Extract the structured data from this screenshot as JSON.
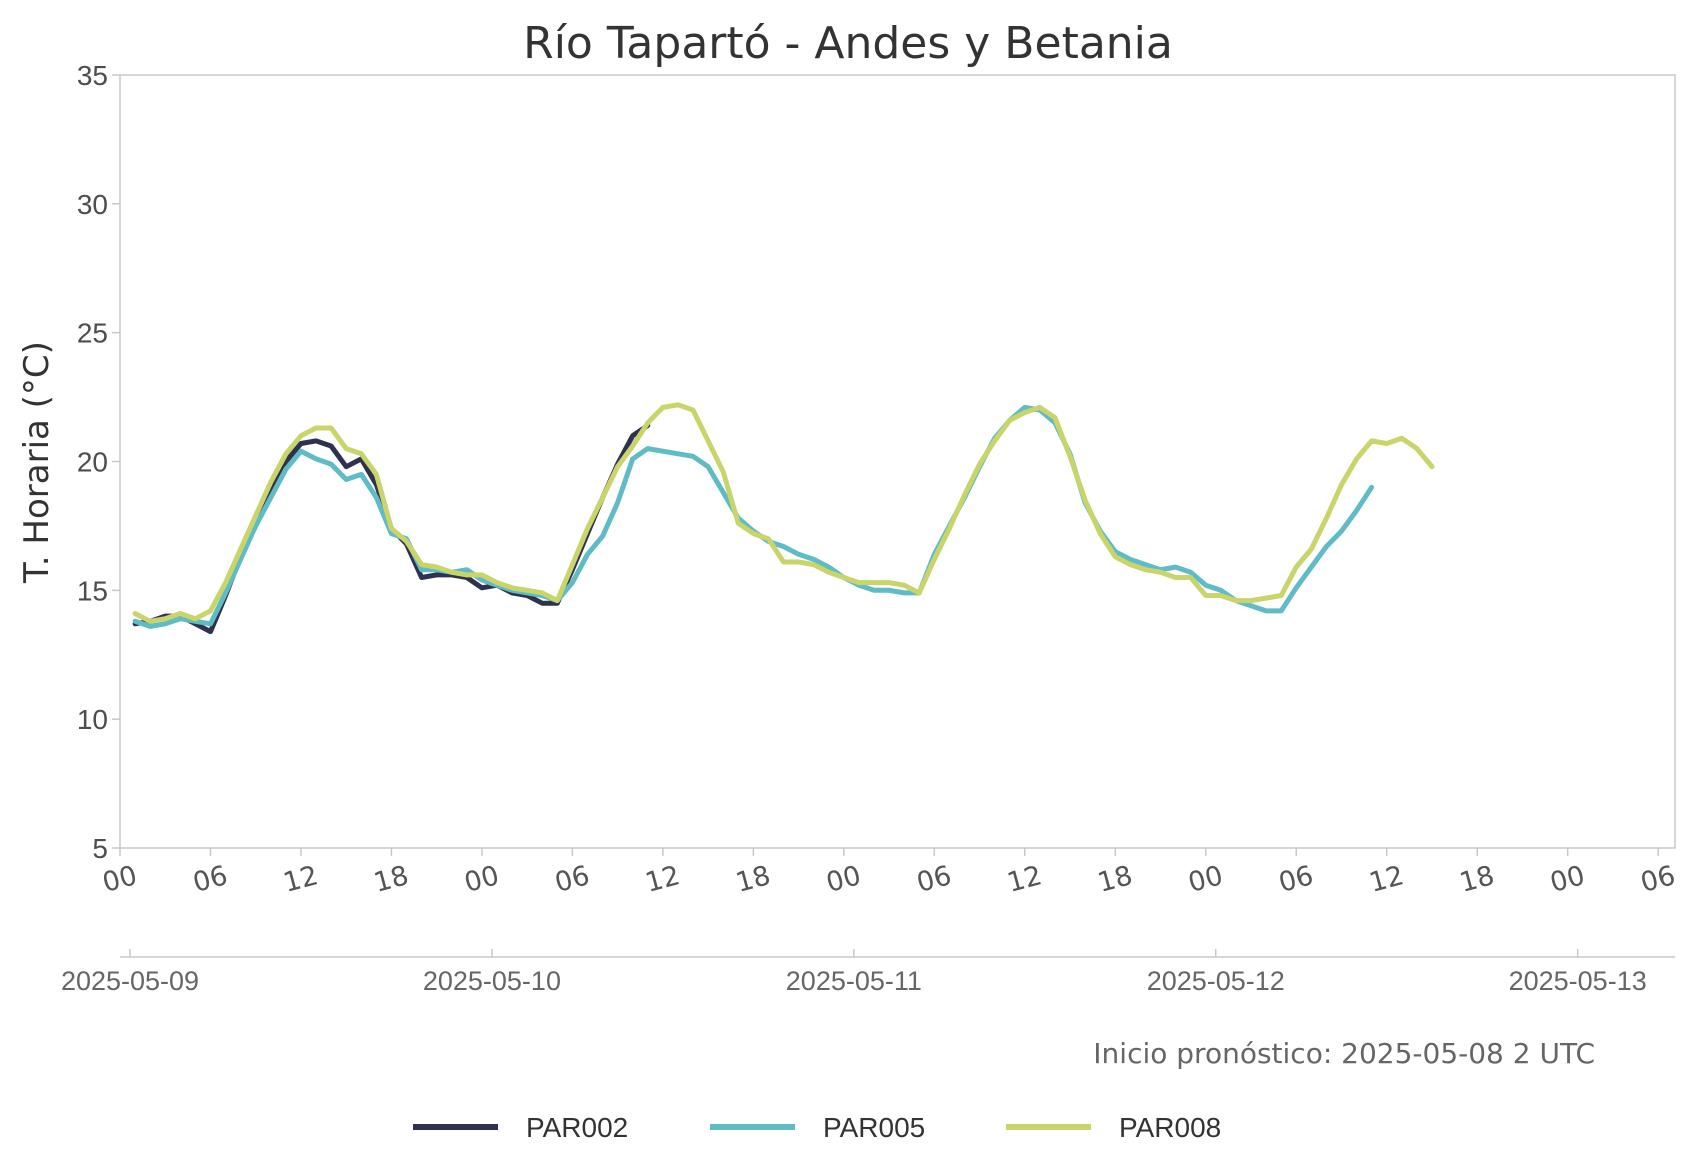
{
  "chart_data": {
    "type": "line",
    "title": "Río Tapartó - Andes y Betania",
    "ylabel": "T. Horaria (°C)",
    "xlabel": "",
    "ylim": [
      5,
      35
    ],
    "yticks": [
      5,
      10,
      15,
      20,
      25,
      30,
      35
    ],
    "xlim_hours": [
      0,
      102
    ],
    "hour_ticks": [
      "00",
      "06",
      "12",
      "18",
      "00",
      "06",
      "12",
      "18",
      "00",
      "06",
      "12",
      "18",
      "00",
      "06",
      "12",
      "18",
      "00",
      "06"
    ],
    "date_ticks": [
      "2025-05-09",
      "2025-05-10",
      "2025-05-11",
      "2025-05-12",
      "2025-05-13"
    ],
    "x_start": "2025-05-09 00:00",
    "grid": false,
    "legend_position": "bottom",
    "annotation": "Inicio pronóstico: 2025-05-08 2 UTC",
    "series": [
      {
        "name": "PAR002",
        "color": "#2e3250",
        "x": [
          1,
          2,
          3,
          4,
          5,
          6,
          7,
          8,
          9,
          10,
          11,
          12,
          13,
          14,
          15,
          16,
          17,
          18,
          19,
          20,
          21,
          22,
          23,
          24,
          25,
          26,
          27,
          28,
          29,
          30,
          31,
          32,
          33,
          34,
          35
        ],
        "values": [
          13.7,
          13.8,
          14.0,
          14.0,
          13.7,
          13.4,
          14.8,
          16.3,
          17.6,
          18.9,
          20.0,
          20.7,
          20.8,
          20.6,
          19.8,
          20.1,
          19.1,
          17.4,
          16.8,
          15.5,
          15.6,
          15.6,
          15.5,
          15.1,
          15.2,
          14.9,
          14.8,
          14.5,
          14.5,
          15.8,
          17.2,
          18.6,
          19.9,
          21.0,
          21.4
        ]
      },
      {
        "name": "PAR005",
        "color": "#5fbcc6",
        "x": [
          1,
          2,
          3,
          4,
          5,
          6,
          7,
          8,
          9,
          10,
          11,
          12,
          13,
          14,
          15,
          16,
          17,
          18,
          19,
          20,
          21,
          22,
          23,
          24,
          25,
          26,
          27,
          28,
          29,
          30,
          31,
          32,
          33,
          34,
          35,
          36,
          37,
          38,
          39,
          40,
          41,
          42,
          43,
          44,
          45,
          46,
          47,
          48,
          49,
          50,
          51,
          52,
          53,
          54,
          55,
          56,
          57,
          58,
          59,
          60,
          61,
          62,
          63,
          64,
          65,
          66,
          67,
          68,
          69,
          70,
          71,
          72,
          73,
          74,
          75,
          76,
          77,
          78,
          79,
          80,
          81,
          82,
          83
        ],
        "values": [
          13.8,
          13.6,
          13.7,
          13.9,
          13.8,
          13.7,
          14.9,
          16.2,
          17.5,
          18.6,
          19.7,
          20.4,
          20.1,
          19.9,
          19.3,
          19.5,
          18.6,
          17.2,
          17.0,
          15.8,
          15.8,
          15.7,
          15.8,
          15.4,
          15.2,
          15.0,
          14.9,
          14.8,
          14.6,
          15.3,
          16.4,
          17.1,
          18.4,
          20.1,
          20.5,
          20.4,
          20.3,
          20.2,
          19.8,
          18.8,
          17.8,
          17.3,
          16.9,
          16.7,
          16.4,
          16.2,
          15.9,
          15.5,
          15.2,
          15.0,
          15.0,
          14.9,
          14.9,
          16.4,
          17.5,
          18.6,
          19.8,
          20.9,
          21.6,
          22.1,
          22.0,
          21.5,
          20.3,
          18.4,
          17.3,
          16.5,
          16.2,
          16.0,
          15.8,
          15.9,
          15.7,
          15.2,
          15.0,
          14.6,
          14.4,
          14.2,
          14.2,
          15.1,
          15.9,
          16.7,
          17.3,
          18.1,
          19.0
        ]
      },
      {
        "name": "PAR008",
        "color": "#c9d46a",
        "x": [
          1,
          2,
          3,
          4,
          5,
          6,
          7,
          8,
          9,
          10,
          11,
          12,
          13,
          14,
          15,
          16,
          17,
          18,
          19,
          20,
          21,
          22,
          23,
          24,
          25,
          26,
          27,
          28,
          29,
          30,
          31,
          32,
          33,
          34,
          35,
          36,
          37,
          38,
          39,
          40,
          41,
          42,
          43,
          44,
          45,
          46,
          47,
          48,
          49,
          50,
          51,
          52,
          53,
          54,
          55,
          56,
          57,
          58,
          59,
          60,
          61,
          62,
          63,
          64,
          65,
          66,
          67,
          68,
          69,
          70,
          71,
          72,
          73,
          74,
          75,
          76,
          77,
          78,
          79,
          80,
          81,
          82,
          83,
          84,
          85,
          86,
          87
        ],
        "values": [
          14.1,
          13.8,
          13.9,
          14.1,
          13.9,
          14.2,
          15.3,
          16.6,
          17.9,
          19.2,
          20.3,
          21.0,
          21.3,
          21.3,
          20.5,
          20.3,
          19.5,
          17.4,
          16.9,
          16.0,
          15.9,
          15.7,
          15.6,
          15.6,
          15.3,
          15.1,
          15.0,
          14.9,
          14.6,
          16.0,
          17.4,
          18.6,
          19.8,
          20.6,
          21.5,
          22.1,
          22.2,
          22.0,
          20.8,
          19.6,
          17.6,
          17.2,
          17.0,
          16.1,
          16.1,
          16.0,
          15.7,
          15.5,
          15.3,
          15.3,
          15.3,
          15.2,
          14.9,
          16.2,
          17.4,
          18.7,
          19.9,
          20.8,
          21.6,
          21.9,
          22.1,
          21.7,
          20.2,
          18.5,
          17.2,
          16.3,
          16.0,
          15.8,
          15.7,
          15.5,
          15.5,
          14.8,
          14.8,
          14.6,
          14.6,
          14.7,
          14.8,
          15.9,
          16.6,
          17.8,
          19.1,
          20.1,
          20.8,
          20.7,
          20.9,
          20.5,
          19.8
        ]
      }
    ]
  }
}
